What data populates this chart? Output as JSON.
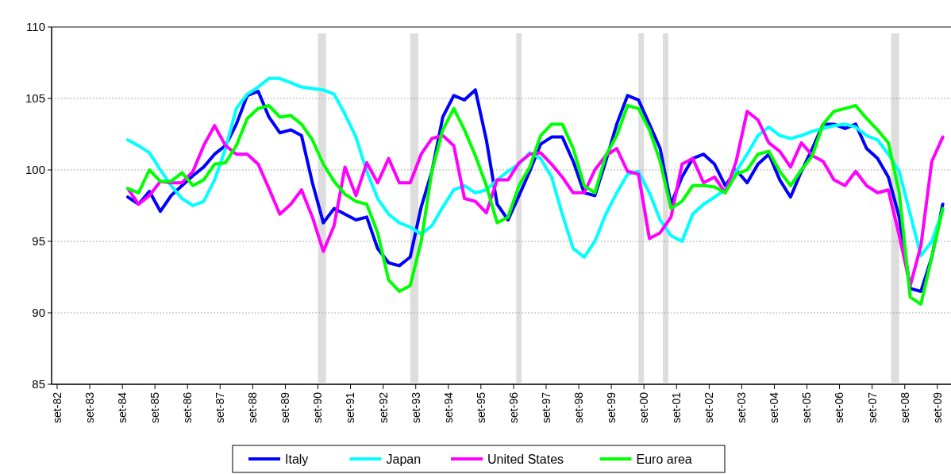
{
  "chart_data": {
    "type": "line",
    "x": [
      "1984-11",
      "1985-03",
      "1985-07",
      "1985-11",
      "1986-03",
      "1986-07",
      "1986-11",
      "1987-03",
      "1987-07",
      "1987-11",
      "1988-03",
      "1988-07",
      "1988-11",
      "1989-03",
      "1989-07",
      "1989-11",
      "1990-03",
      "1990-07",
      "1990-11",
      "1991-03",
      "1991-07",
      "1991-11",
      "1992-03",
      "1992-07",
      "1992-11",
      "1993-03",
      "1993-07",
      "1993-11",
      "1994-03",
      "1994-07",
      "1994-11",
      "1995-03",
      "1995-07",
      "1995-11",
      "1996-03",
      "1996-07",
      "1996-11",
      "1997-03",
      "1997-07",
      "1997-11",
      "1998-03",
      "1998-07",
      "1998-11",
      "1999-03",
      "1999-07",
      "1999-11",
      "2000-03",
      "2000-07",
      "2000-11",
      "2001-03",
      "2001-07",
      "2001-11",
      "2002-03",
      "2002-07",
      "2002-11",
      "2003-03",
      "2003-07",
      "2003-11",
      "2004-03",
      "2004-07",
      "2004-11",
      "2005-03",
      "2005-07",
      "2005-11",
      "2006-03",
      "2006-07",
      "2006-11",
      "2007-03",
      "2007-07",
      "2007-11",
      "2008-03",
      "2008-07",
      "2008-11",
      "2009-03",
      "2009-07",
      "2009-11"
    ],
    "series": [
      {
        "name": "Italy",
        "color": "#0000ff",
        "values": [
          98.1,
          97.6,
          98.5,
          97.1,
          98.2,
          98.9,
          99.6,
          100.2,
          101.1,
          101.7,
          103.2,
          105.2,
          105.5,
          103.7,
          102.6,
          102.8,
          102.4,
          99.1,
          96.3,
          97.3,
          96.9,
          96.5,
          96.7,
          94.5,
          93.5,
          93.3,
          93.9,
          97.4,
          99.9,
          103.7,
          105.2,
          104.9,
          105.6,
          102.1,
          97.6,
          96.5,
          98.2,
          99.9,
          101.8,
          102.3,
          102.3,
          100.6,
          98.4,
          98.2,
          100.6,
          103.2,
          105.2,
          104.9,
          103.2,
          101.5,
          97.6,
          99.5,
          100.8,
          101.1,
          100.4,
          98.9,
          100.0,
          99.1,
          100.4,
          101.1,
          99.3,
          98.1,
          99.9,
          101.5,
          103.2,
          103.2,
          102.9,
          103.2,
          101.5,
          100.8,
          99.5,
          96.7,
          91.7,
          91.5,
          93.9,
          97.6
        ]
      },
      {
        "name": "Japan",
        "color": "#00ffff",
        "values": [
          102.1,
          101.7,
          101.2,
          100.0,
          98.9,
          98.0,
          97.5,
          97.8,
          99.3,
          101.5,
          104.3,
          105.3,
          105.8,
          106.4,
          106.4,
          106.1,
          105.8,
          105.7,
          105.6,
          105.3,
          103.9,
          102.3,
          99.9,
          98.0,
          96.9,
          96.3,
          96.0,
          95.5,
          96.1,
          97.4,
          98.6,
          98.9,
          98.4,
          98.6,
          99.3,
          99.9,
          100.4,
          101.2,
          100.8,
          99.5,
          96.9,
          94.5,
          93.9,
          95.0,
          96.9,
          98.4,
          99.7,
          99.9,
          98.4,
          96.5,
          95.4,
          95.0,
          96.9,
          97.6,
          98.1,
          98.6,
          99.9,
          101.1,
          102.4,
          103.0,
          102.4,
          102.2,
          102.4,
          102.7,
          102.9,
          103.1,
          103.2,
          103.0,
          102.4,
          102.1,
          101.1,
          99.9,
          96.9,
          94.0,
          95.0,
          97.2
        ]
      },
      {
        "name": "United States",
        "color": "#ff00ff",
        "values": [
          98.7,
          97.6,
          98.2,
          99.2,
          99.1,
          99.1,
          99.9,
          101.7,
          103.1,
          101.7,
          101.1,
          101.1,
          100.4,
          98.7,
          96.9,
          97.6,
          98.6,
          96.7,
          94.3,
          96.1,
          100.2,
          98.2,
          100.5,
          99.1,
          100.8,
          99.1,
          99.1,
          101.1,
          102.2,
          102.4,
          101.7,
          98.0,
          97.8,
          97.0,
          99.3,
          99.3,
          100.5,
          101.1,
          101.2,
          100.4,
          99.5,
          98.4,
          98.4,
          100.0,
          101.0,
          101.5,
          99.9,
          99.7,
          95.2,
          95.6,
          96.7,
          100.4,
          100.8,
          99.1,
          99.5,
          98.4,
          100.6,
          104.1,
          103.5,
          101.9,
          101.3,
          100.2,
          101.9,
          101.0,
          100.6,
          99.3,
          98.9,
          99.9,
          98.9,
          98.4,
          98.6,
          95.4,
          91.9,
          94.7,
          100.6,
          102.3
        ]
      },
      {
        "name": "Euro area",
        "color": "#00ff00",
        "values": [
          98.7,
          98.4,
          100.0,
          99.2,
          99.2,
          99.8,
          98.9,
          99.3,
          100.4,
          100.5,
          101.7,
          103.6,
          104.3,
          104.5,
          103.7,
          103.8,
          103.2,
          102.1,
          100.4,
          99.2,
          98.3,
          97.8,
          97.6,
          95.6,
          92.3,
          91.5,
          91.9,
          95.0,
          99.9,
          102.8,
          104.3,
          102.8,
          101.0,
          98.9,
          96.3,
          96.7,
          98.9,
          100.2,
          102.4,
          103.2,
          103.2,
          101.5,
          98.9,
          98.4,
          101.0,
          102.4,
          104.5,
          104.3,
          102.8,
          100.6,
          97.3,
          97.8,
          98.9,
          98.9,
          98.8,
          98.4,
          99.7,
          100.0,
          101.1,
          101.3,
          99.9,
          98.9,
          100.0,
          101.0,
          103.2,
          104.1,
          104.3,
          104.5,
          103.6,
          102.8,
          101.9,
          98.4,
          91.1,
          90.6,
          93.9,
          97.3
        ]
      }
    ],
    "xlim": [
      "1982-07",
      "2010-02"
    ],
    "xticks": [
      {
        "value": "1982-09",
        "label": "set-82"
      },
      {
        "value": "1983-09",
        "label": "set-83"
      },
      {
        "value": "1984-09",
        "label": "set-84"
      },
      {
        "value": "1985-09",
        "label": "set-85"
      },
      {
        "value": "1986-09",
        "label": "set-86"
      },
      {
        "value": "1987-09",
        "label": "set-87"
      },
      {
        "value": "1988-09",
        "label": "set-88"
      },
      {
        "value": "1989-09",
        "label": "set-89"
      },
      {
        "value": "1990-09",
        "label": "set-90"
      },
      {
        "value": "1991-09",
        "label": "set-91"
      },
      {
        "value": "1992-09",
        "label": "set-92"
      },
      {
        "value": "1993-09",
        "label": "set-93"
      },
      {
        "value": "1994-09",
        "label": "set-94"
      },
      {
        "value": "1995-09",
        "label": "set-95"
      },
      {
        "value": "1996-09",
        "label": "set-96"
      },
      {
        "value": "1997-09",
        "label": "set-97"
      },
      {
        "value": "1998-09",
        "label": "set-98"
      },
      {
        "value": "1999-09",
        "label": "set-99"
      },
      {
        "value": "2000-09",
        "label": "set-00"
      },
      {
        "value": "2001-09",
        "label": "set-01"
      },
      {
        "value": "2002-09",
        "label": "set-02"
      },
      {
        "value": "2003-09",
        "label": "set-03"
      },
      {
        "value": "2004-09",
        "label": "set-04"
      },
      {
        "value": "2005-09",
        "label": "set-05"
      },
      {
        "value": "2006-09",
        "label": "set-06"
      },
      {
        "value": "2007-09",
        "label": "set-07"
      },
      {
        "value": "2008-09",
        "label": "set-08"
      },
      {
        "value": "2009-09",
        "label": "set-09"
      }
    ],
    "ylim": [
      85,
      110
    ],
    "yticks": [
      85,
      90,
      95,
      100,
      105,
      110
    ],
    "grid": "y",
    "legend": "bottom",
    "line_style": "solid",
    "bands": [
      {
        "axis": "x",
        "from": "1990-09",
        "to": "1990-12",
        "color": "#dddddd"
      },
      {
        "axis": "x",
        "from": "1993-07",
        "to": "1993-10",
        "color": "#dddddd"
      },
      {
        "axis": "x",
        "from": "1996-10",
        "to": "1996-12",
        "color": "#dddddd"
      },
      {
        "axis": "x",
        "from": "2000-07",
        "to": "2000-09",
        "color": "#dddddd"
      },
      {
        "axis": "x",
        "from": "2001-04",
        "to": "2001-06",
        "color": "#dddddd"
      },
      {
        "axis": "x",
        "from": "2008-04",
        "to": "2008-07",
        "color": "#dddddd"
      }
    ]
  }
}
